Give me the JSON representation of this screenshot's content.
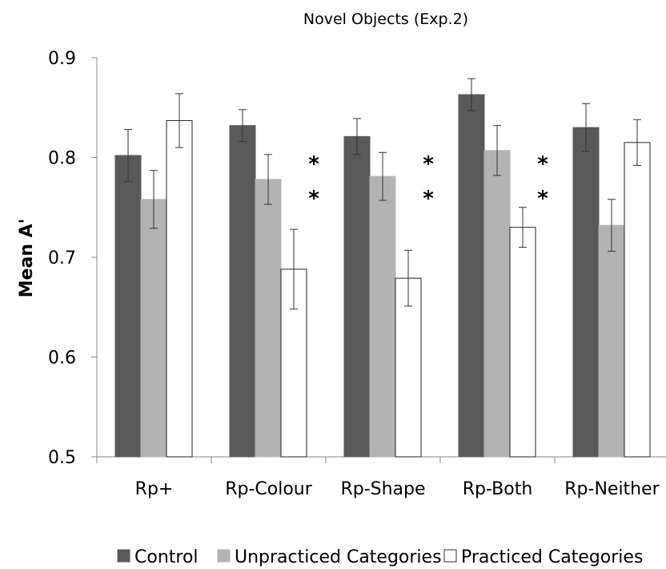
{
  "chart_data": {
    "type": "bar",
    "title": "Novel Objects (Exp.2)",
    "xlabel": "",
    "ylabel": "Mean A'",
    "ylim": [
      0.5,
      0.9
    ],
    "yticks": [
      "0.5",
      "0.6",
      "0.7",
      "0.8",
      "0.9"
    ],
    "grid": false,
    "legend_position": "bottom",
    "categories": [
      "Rp+",
      "Rp-Colour",
      "Rp-Shape",
      "Rp-Both",
      "Rp-Neither"
    ],
    "series": [
      {
        "name": "Control",
        "color": "#595959",
        "values": [
          0.802,
          0.832,
          0.821,
          0.863,
          0.83
        ],
        "errors": [
          0.026,
          0.016,
          0.018,
          0.016,
          0.024
        ]
      },
      {
        "name": "Unpracticed Categories",
        "color": "#b3b3b3",
        "values": [
          0.758,
          0.778,
          0.781,
          0.807,
          0.732
        ],
        "errors": [
          0.029,
          0.025,
          0.024,
          0.025,
          0.026
        ]
      },
      {
        "name": "Practiced Categories",
        "color": "#ffffff",
        "values": [
          0.837,
          0.688,
          0.679,
          0.73,
          0.815
        ],
        "errors": [
          0.027,
          0.04,
          0.028,
          0.02,
          0.023
        ]
      }
    ],
    "annotations": [
      {
        "category": "Rp-Colour",
        "rows": [
          "*",
          "*"
        ]
      },
      {
        "category": "Rp-Shape",
        "rows": [
          "*",
          "*"
        ]
      },
      {
        "category": "Rp-Both",
        "rows": [
          "*",
          "*"
        ]
      }
    ]
  }
}
